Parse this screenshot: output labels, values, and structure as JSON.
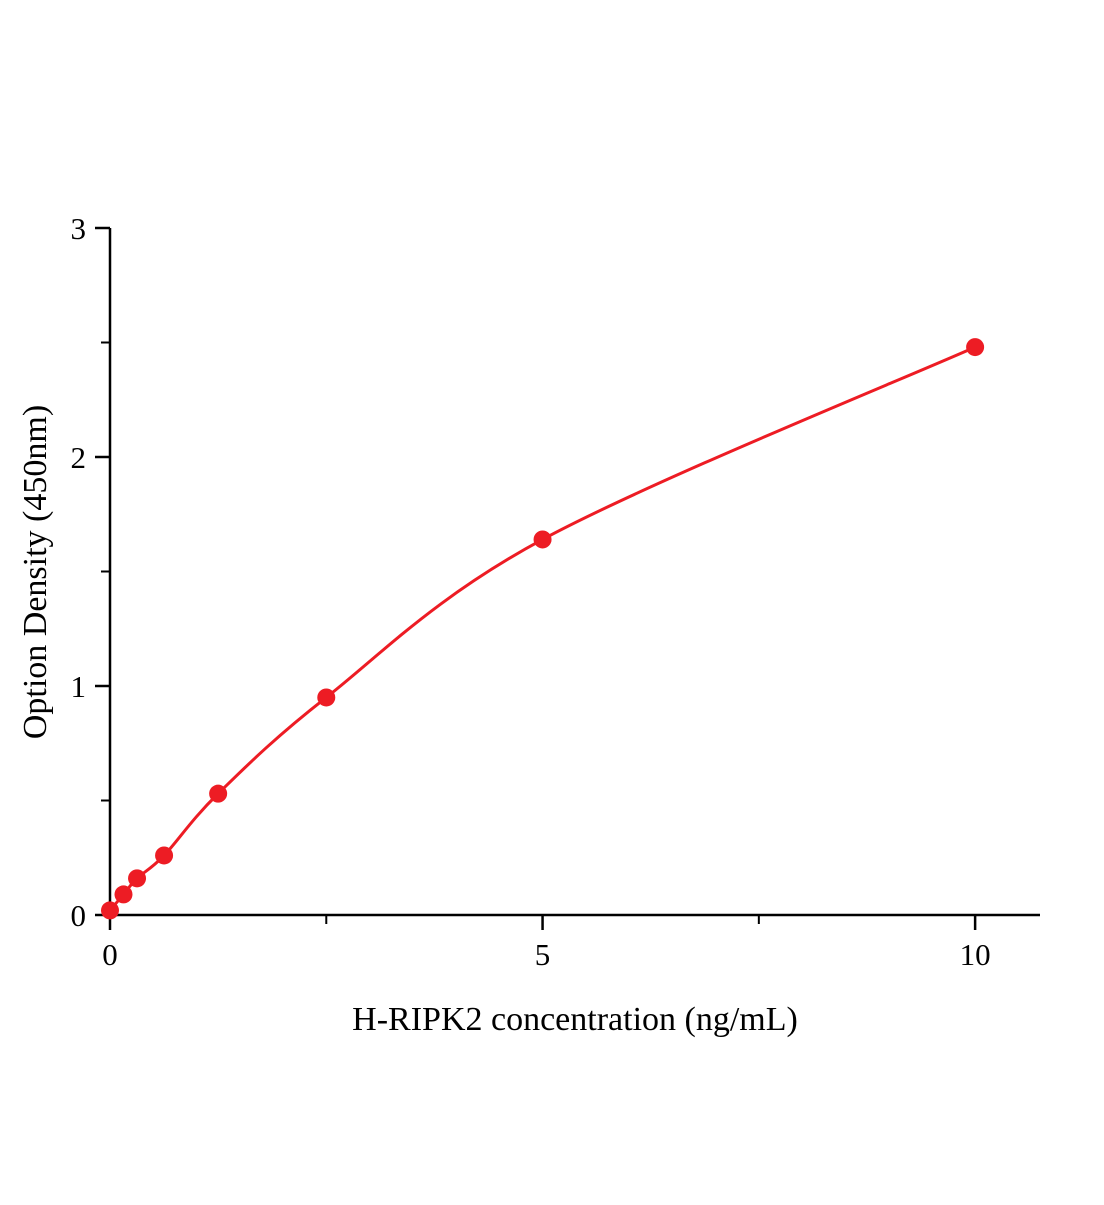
{
  "chart_data": {
    "type": "line",
    "title": "",
    "xlabel": "H-RIPK2 concentration (ng/mL)",
    "ylabel": "Option Density (450nm)",
    "x": [
      0,
      0.156,
      0.3125,
      0.625,
      1.25,
      2.5,
      5,
      10
    ],
    "y": [
      0.02,
      0.09,
      0.16,
      0.26,
      0.53,
      0.95,
      1.64,
      2.48
    ],
    "xlim": [
      0,
      10.75
    ],
    "ylim": [
      0,
      3
    ],
    "xticks": [
      0,
      5,
      10
    ],
    "yticks": [
      0,
      1,
      2,
      3
    ],
    "x_minor_ticks": [
      2.5,
      7.5
    ],
    "y_minor_ticks": [
      0.5,
      1.5,
      2.5
    ],
    "line_color": "#ed1c24",
    "marker_color": "#ed1c24",
    "axis_color": "#000000",
    "grid": false,
    "legend_position": "none"
  }
}
